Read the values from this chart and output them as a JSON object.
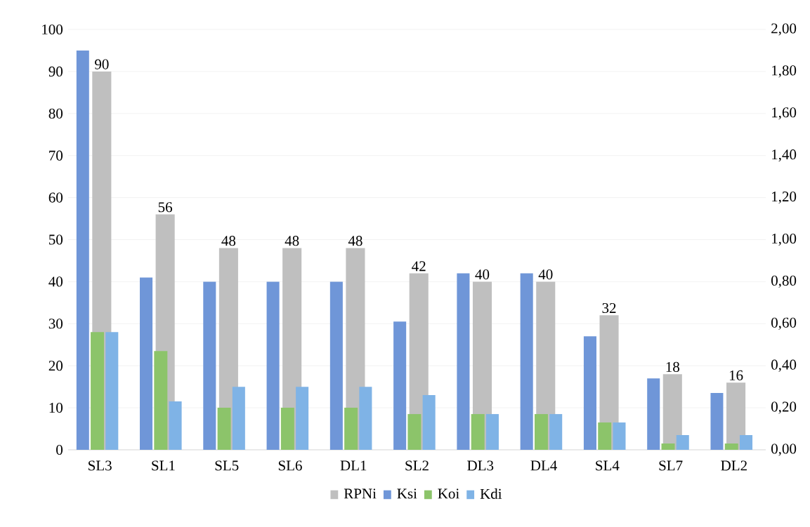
{
  "chart_data": {
    "type": "bar",
    "categories": [
      "SL3",
      "SL1",
      "SL5",
      "SL6",
      "DL1",
      "SL2",
      "DL3",
      "DL4",
      "SL4",
      "SL7",
      "DL2"
    ],
    "series": [
      {
        "name": "RPNi",
        "color": "#bfbfbf",
        "values": [
          90,
          56,
          48,
          48,
          48,
          42,
          40,
          40,
          32,
          18,
          16
        ],
        "value_labels": [
          "90",
          "56",
          "48",
          "48",
          "48",
          "42",
          "40",
          "40",
          "32",
          "18",
          "16"
        ]
      },
      {
        "name": "Ksi",
        "color": "#6f96d8",
        "axis": "y2",
        "values": [
          1.9,
          0.82,
          0.8,
          0.8,
          0.8,
          0.61,
          0.84,
          0.84,
          0.54,
          0.34,
          0.27
        ]
      },
      {
        "name": "Koi",
        "color": "#8cc46a",
        "axis": "y2",
        "values": [
          0.56,
          0.47,
          0.2,
          0.2,
          0.2,
          0.17,
          0.17,
          0.17,
          0.13,
          0.03,
          0.03
        ]
      },
      {
        "name": "Kdi",
        "color": "#7fb3e6",
        "axis": "y2",
        "values": [
          0.56,
          0.23,
          0.3,
          0.3,
          0.3,
          0.26,
          0.17,
          0.17,
          0.13,
          0.07,
          0.07
        ]
      }
    ],
    "ylim": [
      0,
      100
    ],
    "yticks": [
      0,
      10,
      20,
      30,
      40,
      50,
      60,
      70,
      80,
      90,
      100
    ],
    "y2lim": [
      0,
      2
    ],
    "y2ticks": [
      {
        "value": 0,
        "label": "0,00"
      },
      {
        "value": 0.2,
        "label": "0,20"
      },
      {
        "value": 0.4,
        "label": "0,40"
      },
      {
        "value": 0.6,
        "label": "0,60"
      },
      {
        "value": 0.8,
        "label": "0,80"
      },
      {
        "value": 1.0,
        "label": "1,00"
      },
      {
        "value": 1.2,
        "label": "1,20"
      },
      {
        "value": 1.4,
        "label": "1,40"
      },
      {
        "value": 1.6,
        "label": "1,60"
      },
      {
        "value": 1.8,
        "label": "1,80"
      },
      {
        "value": 2.0,
        "label": "2,00"
      }
    ],
    "grid": "y",
    "legend": "bottom"
  }
}
